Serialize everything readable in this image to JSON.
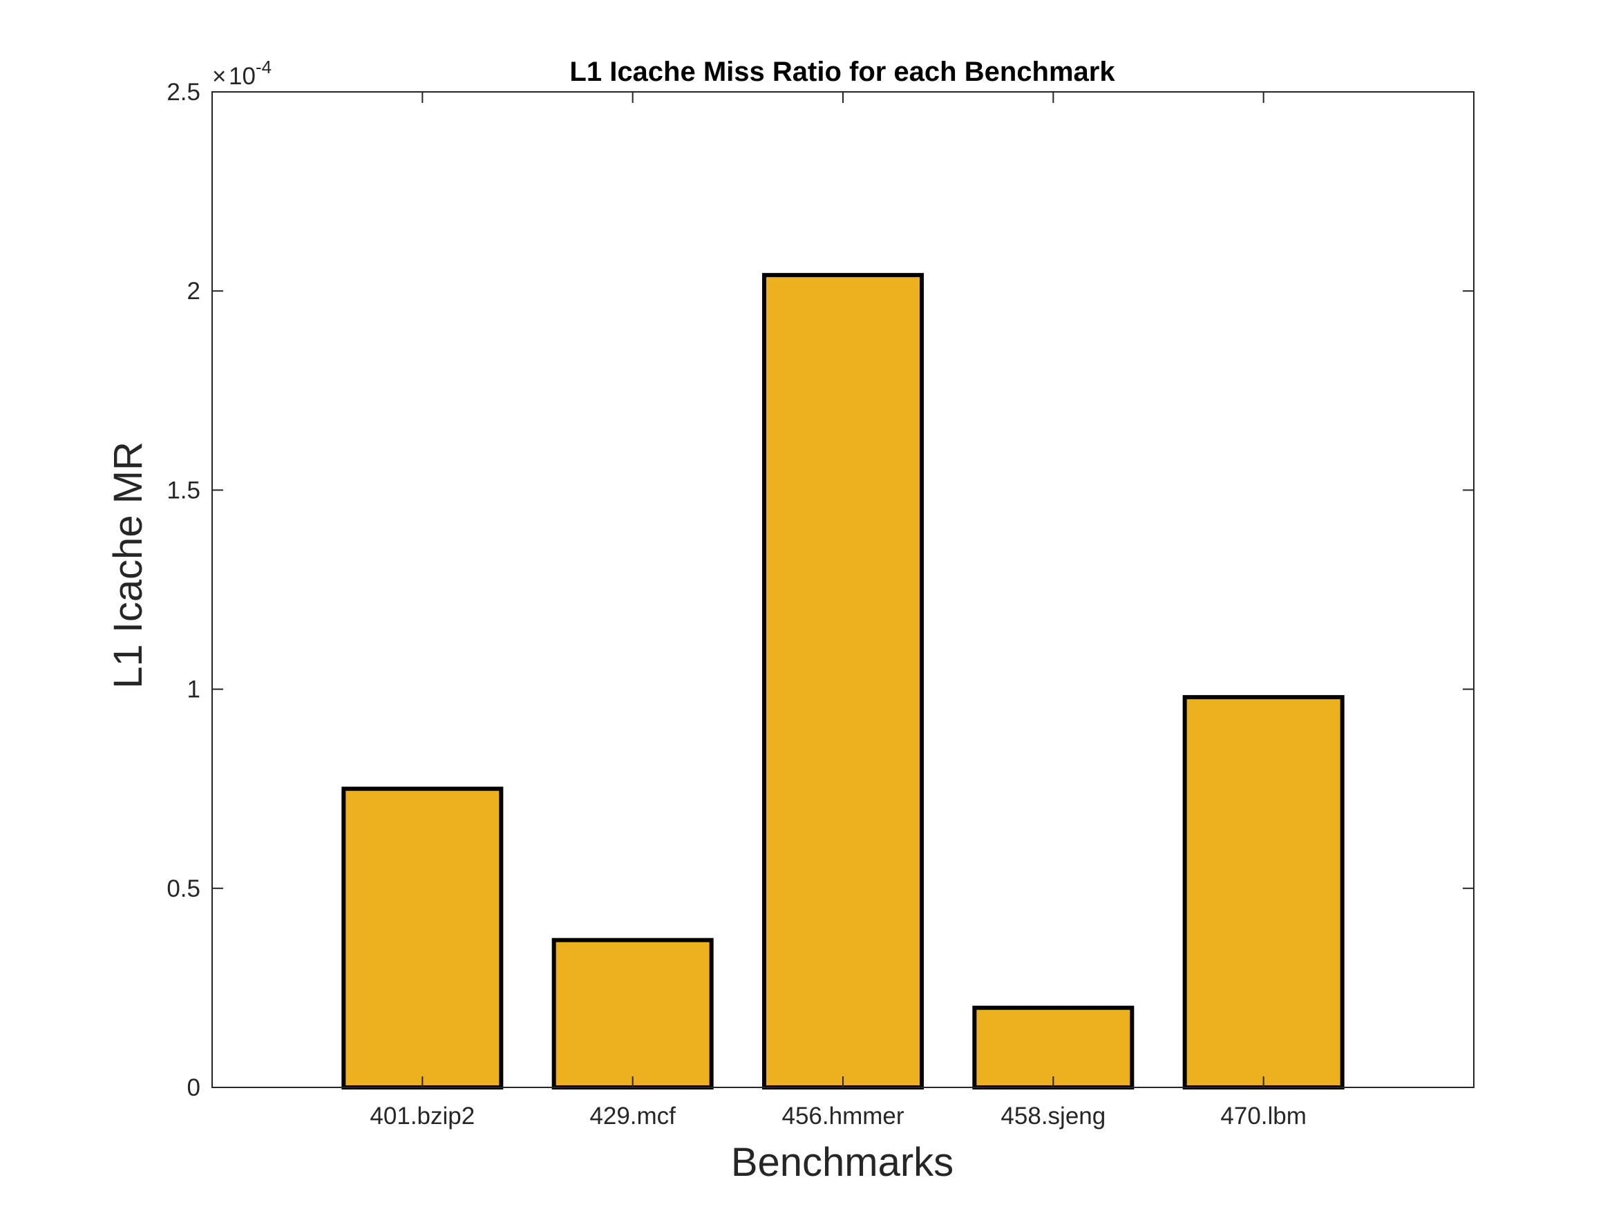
{
  "chart_data": {
    "type": "bar",
    "title": "L1 Icache Miss Ratio for each Benchmark",
    "xlabel": "Benchmarks",
    "ylabel": "L1 Icache MR",
    "categories": [
      "401.bzip2",
      "429.mcf",
      "456.hmmer",
      "458.sjeng",
      "470.lbm"
    ],
    "values": [
      7.5e-05,
      3.7e-05,
      0.000204,
      2e-05,
      9.8e-05
    ],
    "ylim": [
      0,
      0.00025
    ],
    "yticks": [
      0,
      5e-05,
      0.0001,
      0.00015,
      0.0002,
      0.00025
    ],
    "ytick_labels": [
      "0",
      "0.5",
      "1",
      "1.5",
      "2",
      "2.5"
    ],
    "y_exponent_base": "10",
    "y_exponent_power": "-4",
    "x_range": [
      0,
      6
    ],
    "grid": false,
    "legend": "none",
    "bar_color": "#EDB120",
    "bar_edge_color": "#000000"
  }
}
